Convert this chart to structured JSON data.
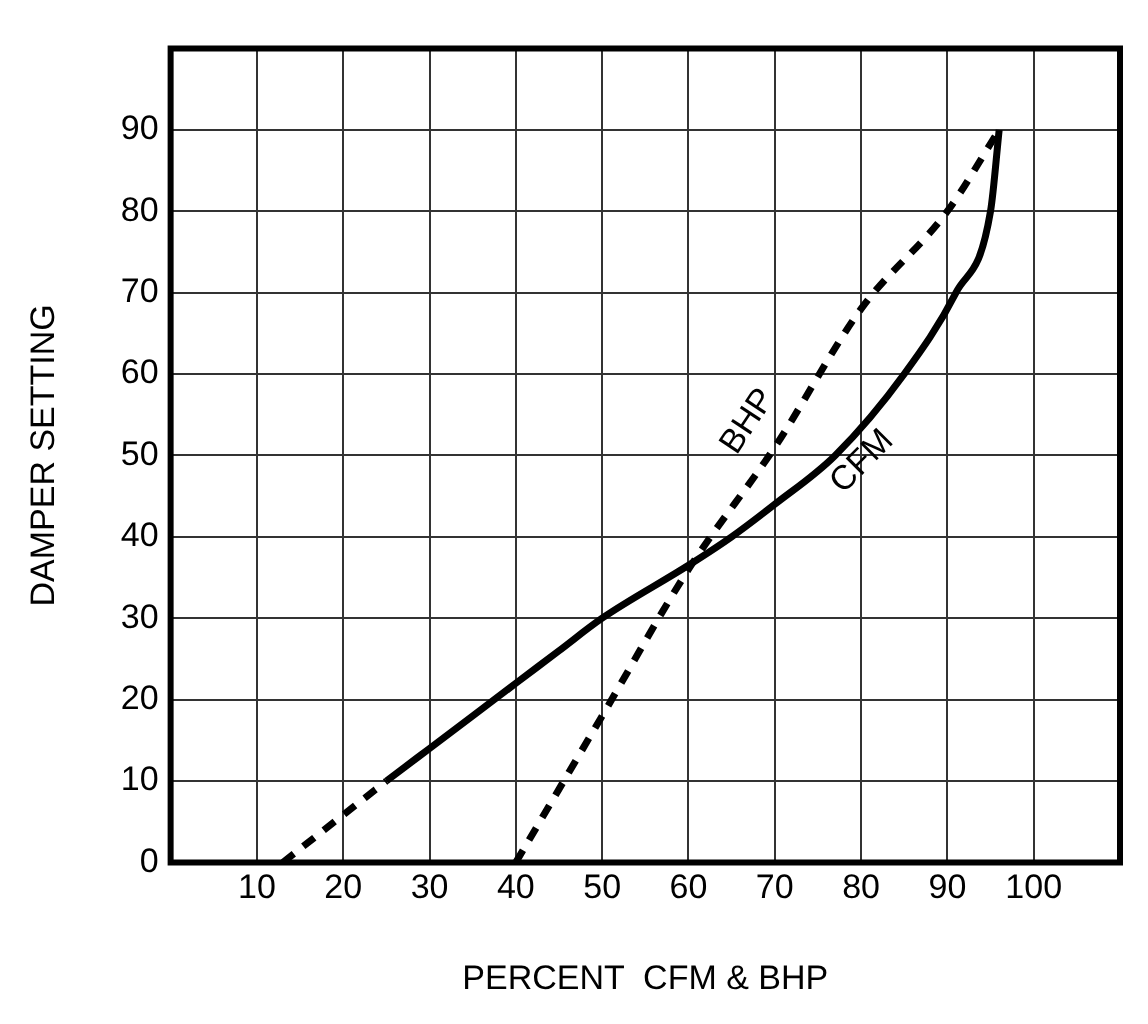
{
  "chart_data": {
    "type": "line",
    "xlabel": "PERCENT  CFM & BHP",
    "ylabel": "DAMPER SETTING",
    "xlim": [
      0,
      110
    ],
    "ylim": [
      0,
      100
    ],
    "xticks": [
      10,
      20,
      30,
      40,
      50,
      60,
      70,
      80,
      90,
      100
    ],
    "yticks": [
      0,
      10,
      20,
      30,
      40,
      50,
      60,
      70,
      80,
      90
    ],
    "grid": true,
    "legend": false,
    "marker": "none",
    "series": [
      {
        "name": "CFM",
        "color": "#000000",
        "line_style": "solid",
        "x": [
          25,
          30,
          40,
          45,
          50,
          60,
          65,
          70,
          77,
          85,
          91,
          95,
          96
        ],
        "values": [
          10,
          14,
          22,
          26,
          30,
          36.5,
          40,
          44,
          50,
          60,
          70,
          80,
          90
        ]
      },
      {
        "color": "#000000",
        "line_style": "dashed",
        "x": [
          13,
          25
        ],
        "values": [
          0,
          10
        ]
      },
      {
        "name": "BHP",
        "color": "#000000",
        "line_style": "dashed",
        "x": [
          40,
          50,
          60,
          70,
          80,
          90,
          96
        ],
        "values": [
          0,
          18,
          36,
          51,
          68,
          80,
          90
        ]
      }
    ]
  }
}
